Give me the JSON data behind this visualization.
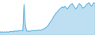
{
  "values": [
    12,
    11,
    12,
    11,
    12,
    11,
    12,
    11,
    13,
    12,
    13,
    12,
    14,
    13,
    14,
    13,
    15,
    14,
    15,
    14,
    72,
    28,
    14,
    13,
    14,
    13,
    14,
    15,
    14,
    15,
    14,
    16,
    15,
    16,
    15,
    17,
    18,
    19,
    21,
    23,
    26,
    30,
    34,
    38,
    42,
    47,
    51,
    54,
    57,
    60,
    63,
    65,
    67,
    65,
    68,
    65,
    62,
    66,
    70,
    72,
    74,
    70,
    66,
    62,
    66,
    70,
    74,
    72,
    68,
    64,
    66,
    68,
    72,
    74,
    76,
    72,
    68,
    72,
    76,
    74
  ],
  "line_color": "#5bafd6",
  "fill_color": "#a8d4ee",
  "background_color": "#ffffff",
  "ylim_min": 5,
  "ylim_max": 82
}
